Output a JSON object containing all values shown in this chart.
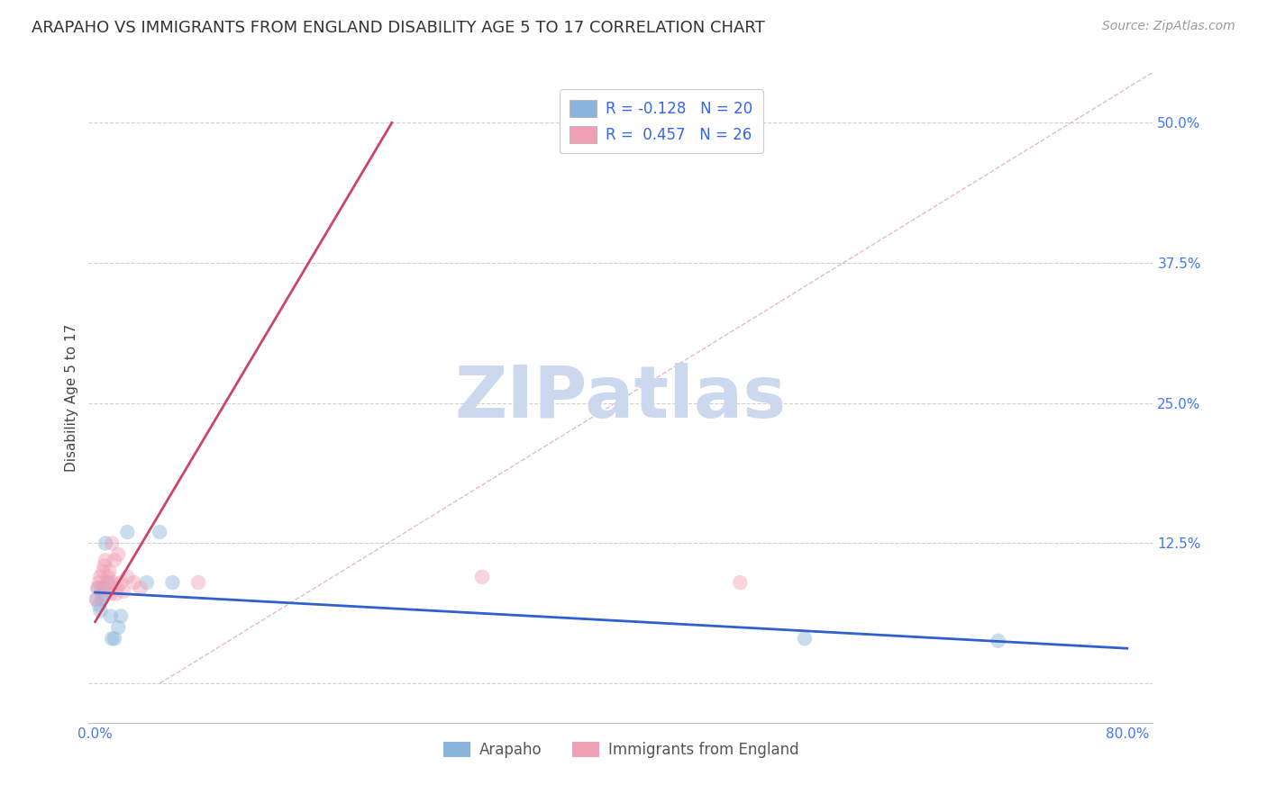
{
  "title": "ARAPAHO VS IMMIGRANTS FROM ENGLAND DISABILITY AGE 5 TO 17 CORRELATION CHART",
  "source": "Source: ZipAtlas.com",
  "ylabel": "Disability Age 5 to 17",
  "xlim_min": -0.005,
  "xlim_max": 0.82,
  "ylim_min": -0.035,
  "ylim_max": 0.545,
  "yticks": [
    0.0,
    0.125,
    0.25,
    0.375,
    0.5
  ],
  "ytick_labels": [
    "",
    "12.5%",
    "25.0%",
    "37.5%",
    "50.0%"
  ],
  "xticks": [
    0.0,
    0.2,
    0.4,
    0.6,
    0.8
  ],
  "xtick_labels": [
    "0.0%",
    "",
    "",
    "",
    "80.0%"
  ],
  "background_color": "#ffffff",
  "grid_color": "#d0d0d0",
  "arapaho_color": "#8ab4dc",
  "england_color": "#f0a0b5",
  "arapaho_r": -0.128,
  "arapaho_n": 20,
  "england_r": 0.457,
  "england_n": 26,
  "arapaho_line_color": "#3060cc",
  "england_line_color": "#cc4466",
  "legend_label_arapaho": "Arapaho",
  "legend_label_england": "Immigrants from England",
  "arapaho_x": [
    0.001,
    0.002,
    0.003,
    0.004,
    0.005,
    0.006,
    0.007,
    0.008,
    0.01,
    0.012,
    0.013,
    0.015,
    0.018,
    0.02,
    0.025,
    0.04,
    0.05,
    0.06,
    0.55,
    0.7
  ],
  "arapaho_y": [
    0.075,
    0.085,
    0.07,
    0.065,
    0.075,
    0.08,
    0.085,
    0.125,
    0.09,
    0.06,
    0.04,
    0.04,
    0.05,
    0.06,
    0.135,
    0.09,
    0.135,
    0.09,
    0.04,
    0.038
  ],
  "england_x": [
    0.001,
    0.002,
    0.003,
    0.004,
    0.005,
    0.006,
    0.007,
    0.008,
    0.009,
    0.01,
    0.011,
    0.012,
    0.013,
    0.014,
    0.015,
    0.016,
    0.017,
    0.018,
    0.02,
    0.022,
    0.025,
    0.03,
    0.035,
    0.08,
    0.3,
    0.5
  ],
  "england_y": [
    0.075,
    0.085,
    0.09,
    0.095,
    0.085,
    0.1,
    0.105,
    0.11,
    0.09,
    0.095,
    0.1,
    0.08,
    0.125,
    0.09,
    0.11,
    0.08,
    0.085,
    0.115,
    0.09,
    0.082,
    0.095,
    0.09,
    0.085,
    0.09,
    0.095,
    0.09
  ],
  "england_line_x0": 0.0,
  "england_line_y0": 0.055,
  "england_line_x1": 0.23,
  "england_line_y1": 0.5,
  "arapaho_line_x0": 0.0,
  "arapaho_line_x1": 0.8,
  "diag_color": "#e0b0c0",
  "watermark_color": "#ccd8ee",
  "marker_size": 140,
  "marker_alpha": 0.45,
  "title_fontsize": 13,
  "axis_label_fontsize": 11,
  "tick_fontsize": 11,
  "tick_color_blue": "#4477ee",
  "source_fontsize": 10,
  "source_color": "#999999",
  "legend_r_color": "#ee3355",
  "legend_n_color": "#3366ee"
}
